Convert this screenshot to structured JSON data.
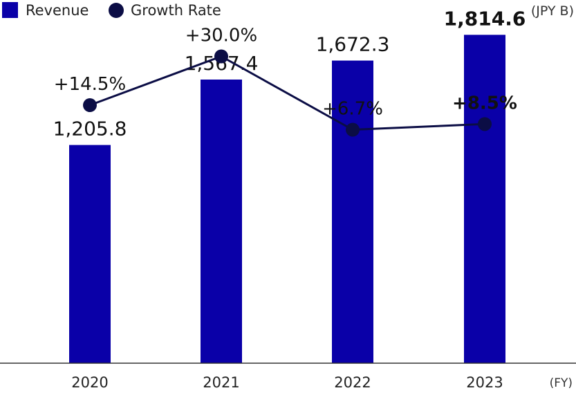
{
  "chart_data": {
    "type": "bar",
    "categories": [
      "2020",
      "2021",
      "2022",
      "2023"
    ],
    "series": [
      {
        "name": "Revenue",
        "type": "bar",
        "values": [
          1205.8,
          1567.4,
          1672.3,
          1814.6
        ],
        "labels": [
          "1,205.8",
          "1,567.4",
          "1,672.3",
          "1,814.6"
        ],
        "color": "#0a00a8"
      },
      {
        "name": "Growth Rate",
        "type": "line",
        "values": [
          14.5,
          30.0,
          6.7,
          8.5
        ],
        "labels": [
          "+14.5%",
          "+30.0%",
          "+6.7%",
          "+8.5%"
        ],
        "color": "#0b0d45"
      }
    ],
    "unit_label": "(JPY B)",
    "xlabel": "(FY)",
    "ylabel": "",
    "title": "",
    "revenue_range": [
      0,
      1900
    ],
    "growth_range": [
      0,
      40
    ],
    "highlight_index": 3,
    "legend_position": "top-left",
    "grid": false
  }
}
